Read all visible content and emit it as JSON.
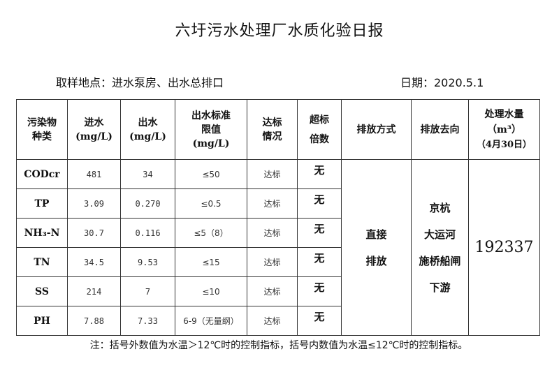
{
  "title": "六圩污水处理厂水质化验日报",
  "location": "取样地点：进水泵房、出水总排口",
  "date": "日期：2020.5.1",
  "headers": {
    "pollutant": [
      "污染物",
      "种类"
    ],
    "inflow": [
      "进水",
      "(mg/L)"
    ],
    "outflow": [
      "出水",
      "(mg/L)"
    ],
    "limit": [
      "出水标准",
      "限值",
      "(mg/L)"
    ],
    "compliance": [
      "达标",
      "情况"
    ],
    "exceed": [
      "超标",
      "倍数"
    ],
    "discharge_method": "排放方式",
    "discharge_dest": "排放去向",
    "volume": [
      "处理水量",
      "（m³）",
      "（4月30日）"
    ]
  },
  "rows": [
    {
      "name": "CODcr",
      "in": "481",
      "out": "34",
      "limit": "≤50",
      "status": "达标",
      "exceed": "无"
    },
    {
      "name": "TP",
      "in": "3.09",
      "out": "0.270",
      "limit": "≤0.5",
      "status": "达标",
      "exceed": "无"
    },
    {
      "name": "NH₃-N",
      "in": "30.7",
      "out": "0.116",
      "limit": "≤5（8）",
      "status": "达标",
      "exceed": "无"
    },
    {
      "name": "TN",
      "in": "34.5",
      "out": "9.53",
      "limit": "≤15",
      "status": "达标",
      "exceed": "无"
    },
    {
      "name": "SS",
      "in": "214",
      "out": "7",
      "limit": "≤10",
      "status": "达标",
      "exceed": "无"
    },
    {
      "name": "PH",
      "in": "7.88",
      "out": "7.33",
      "limit": "6-9（无量纲）",
      "status": "达标",
      "exceed": "无"
    }
  ],
  "discharge_method": [
    "直接",
    "排放"
  ],
  "discharge_dest": [
    "京杭",
    "大运河",
    "施桥船闸",
    "下游"
  ],
  "volume": "192337",
  "note": "注：括号外数值为水温＞12℃时的控制指标，括号内数值为水温≤12℃时的控制指标。"
}
